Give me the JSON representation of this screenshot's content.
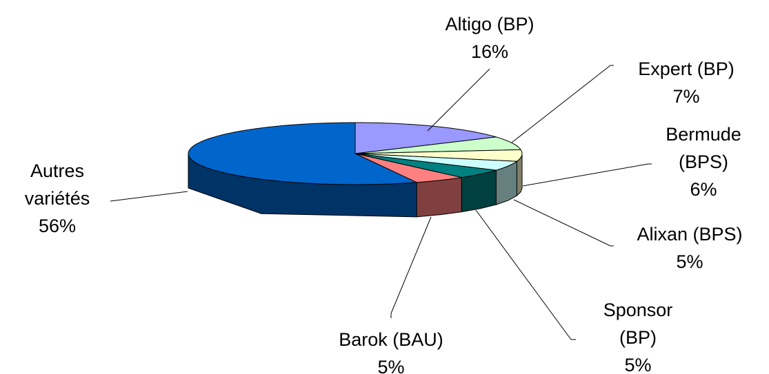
{
  "chart_data": {
    "type": "pie3d",
    "categories": [
      "Altigo (BP)",
      "Expert (BP)",
      "Bermude (BPS)",
      "Alixan (BPS)",
      "Sponsor (BP)",
      "Barok (BAU)",
      "Autres variétés"
    ],
    "values": [
      16,
      7,
      6,
      5,
      5,
      5,
      56
    ],
    "value_labels": [
      "16%",
      "7%",
      "6%",
      "5%",
      "5%",
      "5%",
      "56%"
    ],
    "colors": [
      "#9999ff",
      "#ccffcc",
      "#ffffcc",
      "#ccffff",
      "#008080",
      "#ff8080",
      "#0066cc"
    ]
  }
}
